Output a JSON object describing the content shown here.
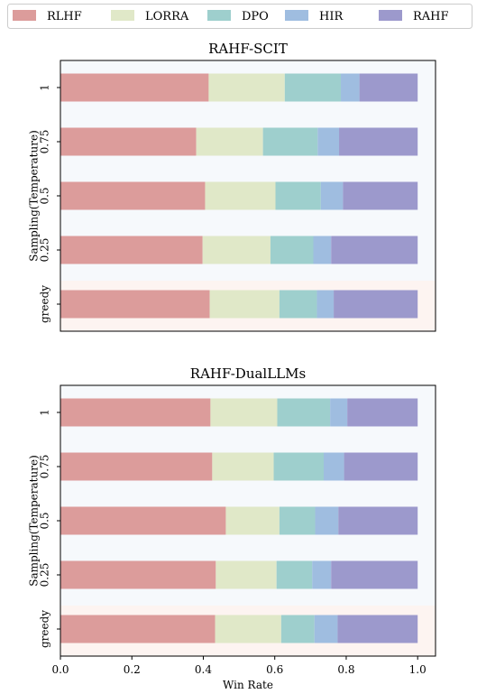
{
  "chart_data": {
    "type": "bar",
    "orientation": "horizontal",
    "stacked": true,
    "legend": {
      "placement": "top",
      "entries": [
        "RLHF",
        "LORRA",
        "DPO",
        "HIR",
        "RAHF"
      ]
    },
    "colors": {
      "RLHF": "#dc9c9b",
      "LORRA": "#e0e8c8",
      "DPO": "#9ecfcd",
      "HIR": "#9fbde0",
      "RAHF": "#9c99cc",
      "plot_background": "#f6f9fc",
      "highlight_background": "#fdf4f1"
    },
    "xlabel": "Win Rate",
    "xlim": [
      0.0,
      1.05
    ],
    "xticks": [
      "0.0",
      "0.2",
      "0.4",
      "0.6",
      "0.8",
      "1.0"
    ],
    "ylabel": "Sampling(Temperature)",
    "categories": [
      "1",
      "0.75",
      "0.5",
      "0.25",
      "greedy"
    ],
    "highlighted_category": "greedy",
    "panels": [
      {
        "title": "RAHF-SCIT",
        "series": [
          {
            "name": "RLHF",
            "values": [
              0.415,
              0.38,
              0.405,
              0.398,
              0.418
            ]
          },
          {
            "name": "LORRA",
            "values": [
              0.213,
              0.187,
              0.197,
              0.19,
              0.195
            ]
          },
          {
            "name": "DPO",
            "values": [
              0.157,
              0.153,
              0.127,
              0.12,
              0.105
            ]
          },
          {
            "name": "HIR",
            "values": [
              0.052,
              0.06,
              0.062,
              0.05,
              0.047
            ]
          },
          {
            "name": "RAHF",
            "values": [
              0.163,
              0.22,
              0.209,
              0.242,
              0.235
            ]
          }
        ]
      },
      {
        "title": "RAHF-DualLLMs",
        "series": [
          {
            "name": "RLHF",
            "values": [
              0.42,
              0.425,
              0.463,
              0.435,
              0.433
            ]
          },
          {
            "name": "LORRA",
            "values": [
              0.187,
              0.172,
              0.15,
              0.17,
              0.185
            ]
          },
          {
            "name": "DPO",
            "values": [
              0.148,
              0.14,
              0.1,
              0.1,
              0.093
            ]
          },
          {
            "name": "HIR",
            "values": [
              0.048,
              0.057,
              0.065,
              0.053,
              0.065
            ]
          },
          {
            "name": "RAHF",
            "values": [
              0.197,
              0.206,
              0.222,
              0.242,
              0.224
            ]
          }
        ]
      }
    ]
  }
}
